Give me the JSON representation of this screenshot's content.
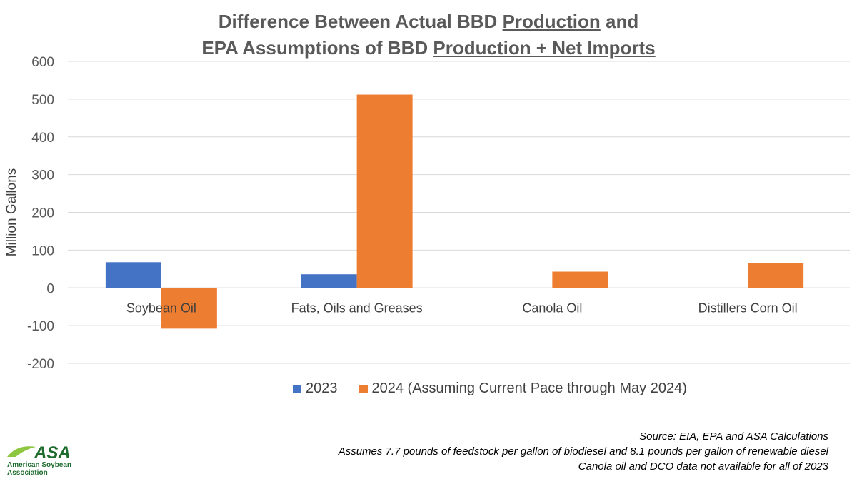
{
  "title": {
    "line1_prefix": "Difference Between Actual BBD ",
    "line1_underlined": "Production",
    "line1_suffix": " and",
    "line2_prefix": "EPA Assumptions of BBD ",
    "line2_underlined": "Production + Net Imports"
  },
  "chart_data": {
    "type": "bar",
    "categories": [
      "Soybean Oil",
      "Fats, Oils and Greases",
      "Canola Oil",
      "Distillers Corn Oil"
    ],
    "series": [
      {
        "name": "2023",
        "values": [
          68,
          36,
          null,
          null
        ],
        "color": "#4472C4"
      },
      {
        "name": "2024 (Assuming Current Pace through May 2024)",
        "values": [
          -108,
          512,
          43,
          66
        ],
        "color": "#ED7D31"
      }
    ],
    "ylabel": "Million Gallons",
    "ylim": [
      -200,
      600
    ],
    "yticks": [
      600,
      500,
      400,
      300,
      200,
      100,
      0,
      -100,
      -200
    ],
    "grid": true,
    "legend": "bottom"
  },
  "footnotes": [
    "Source: EIA, EPA and ASA Calculations",
    "Assumes 7.7 pounds of feedstock per gallon of biodiesel and 8.1 pounds per gallon of renewable diesel",
    "Canola oil and DCO data not available for all of 2023"
  ],
  "logo": {
    "mark": "ASA",
    "line1": "American Soybean",
    "line2": "Association"
  },
  "colors": {
    "accent_green": "#1e6b2e",
    "accent_yellow": "#8dc63f"
  }
}
